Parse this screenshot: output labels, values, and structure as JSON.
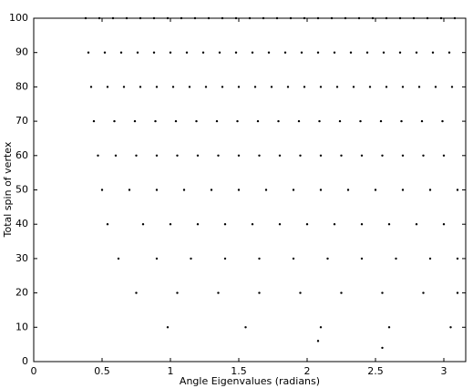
{
  "chart_data": {
    "type": "scatter",
    "x_label": "Angle Eigenvalues (radians)",
    "y_label": "Total spin of vertex",
    "color": "#000000",
    "xlim": [
      0,
      3.16
    ],
    "ylim": [
      0,
      100
    ],
    "xticks": [
      0,
      0.5,
      1,
      1.5,
      2,
      2.5,
      3
    ],
    "yticks": [
      0,
      10,
      20,
      30,
      40,
      50,
      60,
      70,
      80,
      90,
      100
    ],
    "x": [
      2.55,
      2.08,
      0.98,
      1.55,
      2.1,
      2.6,
      3.05,
      0.75,
      1.05,
      1.35,
      1.65,
      1.95,
      2.25,
      2.55,
      2.85,
      3.1,
      0.62,
      0.9,
      1.15,
      1.4,
      1.65,
      1.9,
      2.15,
      2.4,
      2.65,
      2.9,
      3.1,
      0.54,
      0.8,
      1.0,
      1.2,
      1.4,
      1.6,
      1.8,
      2.0,
      2.2,
      2.4,
      2.6,
      2.8,
      3.0,
      0.5,
      0.7,
      0.9,
      1.1,
      1.3,
      1.5,
      1.7,
      1.9,
      2.1,
      2.3,
      2.5,
      2.7,
      2.9,
      3.1,
      0.47,
      0.6,
      0.75,
      0.9,
      1.05,
      1.2,
      1.35,
      1.5,
      1.65,
      1.8,
      1.95,
      2.1,
      2.25,
      2.4,
      2.55,
      2.7,
      2.85,
      3.0,
      0.44,
      0.59,
      0.74,
      0.89,
      1.04,
      1.19,
      1.34,
      1.49,
      1.64,
      1.79,
      1.94,
      2.09,
      2.24,
      2.39,
      2.54,
      2.69,
      2.84,
      2.99,
      0.42,
      0.54,
      0.66,
      0.78,
      0.9,
      1.02,
      1.14,
      1.26,
      1.38,
      1.5,
      1.62,
      1.74,
      1.86,
      1.98,
      2.1,
      2.22,
      2.34,
      2.46,
      2.58,
      2.7,
      2.82,
      2.94,
      3.06,
      0.4,
      0.52,
      0.64,
      0.76,
      0.88,
      1.0,
      1.12,
      1.24,
      1.36,
      1.48,
      1.6,
      1.72,
      1.84,
      1.96,
      2.08,
      2.2,
      2.32,
      2.44,
      2.56,
      2.68,
      2.8,
      2.92,
      3.04,
      0.38,
      0.48,
      0.58,
      0.68,
      0.78,
      0.88,
      0.98,
      1.08,
      1.18,
      1.28,
      1.38,
      1.48,
      1.58,
      1.68,
      1.78,
      1.88,
      1.98,
      2.08,
      2.18,
      2.28,
      2.38,
      2.48,
      2.58,
      2.68,
      2.78,
      2.88,
      2.98,
      3.08
    ],
    "values": [
      4,
      6,
      10,
      10,
      10,
      10,
      10,
      20,
      20,
      20,
      20,
      20,
      20,
      20,
      20,
      20,
      30,
      30,
      30,
      30,
      30,
      30,
      30,
      30,
      30,
      30,
      30,
      40,
      40,
      40,
      40,
      40,
      40,
      40,
      40,
      40,
      40,
      40,
      40,
      40,
      50,
      50,
      50,
      50,
      50,
      50,
      50,
      50,
      50,
      50,
      50,
      50,
      50,
      50,
      60,
      60,
      60,
      60,
      60,
      60,
      60,
      60,
      60,
      60,
      60,
      60,
      60,
      60,
      60,
      60,
      60,
      60,
      70,
      70,
      70,
      70,
      70,
      70,
      70,
      70,
      70,
      70,
      70,
      70,
      70,
      70,
      70,
      70,
      70,
      70,
      80,
      80,
      80,
      80,
      80,
      80,
      80,
      80,
      80,
      80,
      80,
      80,
      80,
      80,
      80,
      80,
      80,
      80,
      80,
      80,
      80,
      80,
      80,
      90,
      90,
      90,
      90,
      90,
      90,
      90,
      90,
      90,
      90,
      90,
      90,
      90,
      90,
      90,
      90,
      90,
      90,
      90,
      90,
      90,
      90,
      90,
      100,
      100,
      100,
      100,
      100,
      100,
      100,
      100,
      100,
      100,
      100,
      100,
      100,
      100,
      100,
      100,
      100,
      100,
      100,
      100,
      100,
      100,
      100,
      100,
      100,
      100,
      100,
      100
    ]
  }
}
